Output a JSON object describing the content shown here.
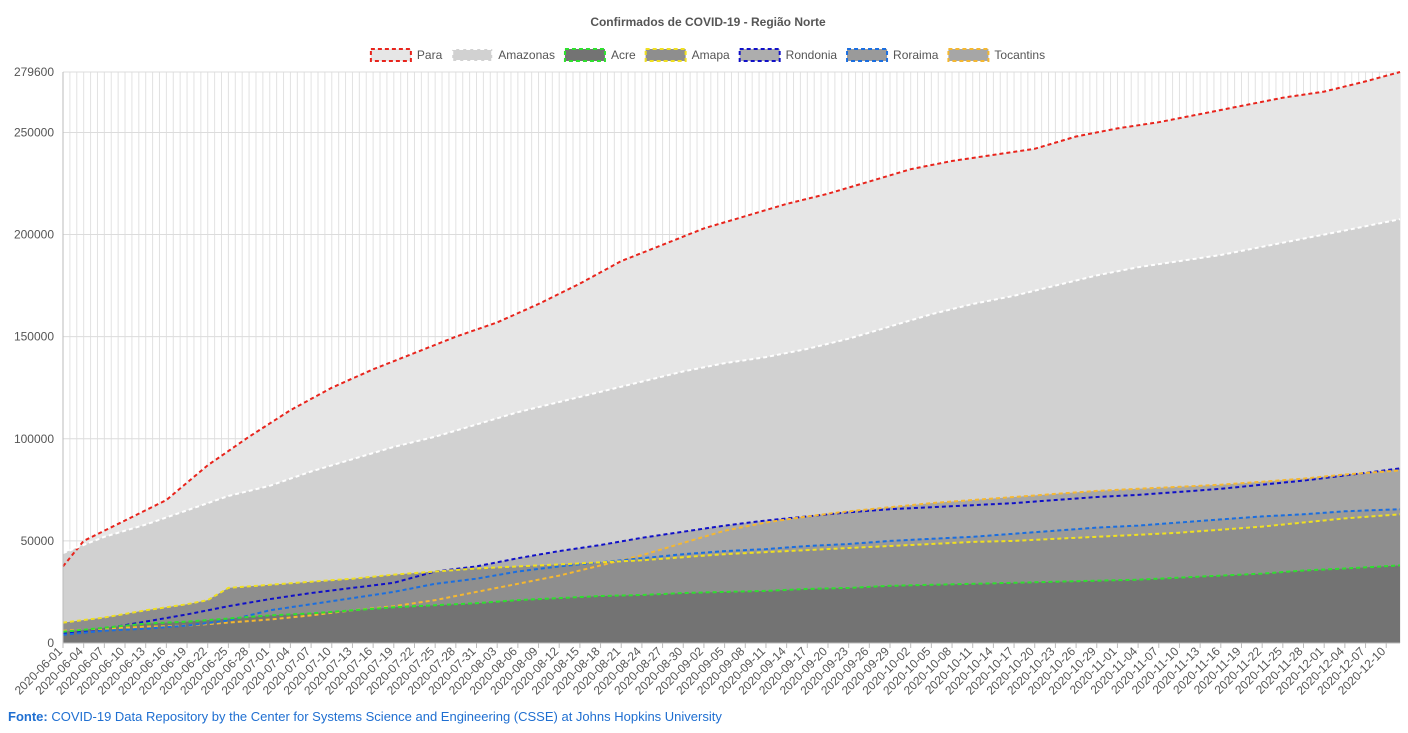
{
  "chart_data": {
    "type": "area",
    "title": "Confirmados de COVID-19 - Região Norte",
    "xlabel": "",
    "ylabel": "",
    "ylim": [
      0,
      279600
    ],
    "y_ticks": [
      0,
      50000,
      100000,
      150000,
      200000,
      250000,
      279600
    ],
    "grid": true,
    "stacked": false,
    "legend_position": "top-center",
    "date_start": "2020-06-01",
    "date_end": "2020-12-12",
    "x_tick_labels": [
      "2020-06-01",
      "2020-06-04",
      "2020-06-07",
      "2020-06-10",
      "2020-06-13",
      "2020-06-16",
      "2020-06-19",
      "2020-06-22",
      "2020-06-25",
      "2020-06-28",
      "2020-07-01",
      "2020-07-04",
      "2020-07-07",
      "2020-07-10",
      "2020-07-13",
      "2020-07-16",
      "2020-07-19",
      "2020-07-22",
      "2020-07-25",
      "2020-07-28",
      "2020-07-31",
      "2020-08-03",
      "2020-08-06",
      "2020-08-09",
      "2020-08-12",
      "2020-08-15",
      "2020-08-18",
      "2020-08-21",
      "2020-08-24",
      "2020-08-27",
      "2020-08-30",
      "2020-09-02",
      "2020-09-05",
      "2020-09-08",
      "2020-09-11",
      "2020-09-14",
      "2020-09-17",
      "2020-09-20",
      "2020-09-23",
      "2020-09-26",
      "2020-09-29",
      "2020-10-02",
      "2020-10-05",
      "2020-10-08",
      "2020-10-11",
      "2020-10-14",
      "2020-10-17",
      "2020-10-20",
      "2020-10-23",
      "2020-10-26",
      "2020-10-29",
      "2020-11-01",
      "2020-11-04",
      "2020-11-07",
      "2020-11-10",
      "2020-11-13",
      "2020-11-16",
      "2020-11-19",
      "2020-11-22",
      "2020-11-25",
      "2020-11-28",
      "2020-12-01",
      "2020-12-04",
      "2020-12-07",
      "2020-12-10"
    ],
    "series": [
      {
        "name": "Para",
        "line_color": "#e8241c",
        "fill_color": "#e6e6e6",
        "points": [
          [
            "2020-06-01",
            37500
          ],
          [
            "2020-06-04",
            50000
          ],
          [
            "2020-06-10",
            60000
          ],
          [
            "2020-06-16",
            70000
          ],
          [
            "2020-06-22",
            87000
          ],
          [
            "2020-06-28",
            101000
          ],
          [
            "2020-07-04",
            114000
          ],
          [
            "2020-07-10",
            125000
          ],
          [
            "2020-07-16",
            134000
          ],
          [
            "2020-07-22",
            142000
          ],
          [
            "2020-07-28",
            150000
          ],
          [
            "2020-08-03",
            157000
          ],
          [
            "2020-08-09",
            166000
          ],
          [
            "2020-08-15",
            176000
          ],
          [
            "2020-08-21",
            187000
          ],
          [
            "2020-08-27",
            195000
          ],
          [
            "2020-09-02",
            203000
          ],
          [
            "2020-09-08",
            209000
          ],
          [
            "2020-09-14",
            215000
          ],
          [
            "2020-09-20",
            220000
          ],
          [
            "2020-09-26",
            226000
          ],
          [
            "2020-10-02",
            232000
          ],
          [
            "2020-10-08",
            236000
          ],
          [
            "2020-10-14",
            239000
          ],
          [
            "2020-10-20",
            242000
          ],
          [
            "2020-10-26",
            248000
          ],
          [
            "2020-11-01",
            252000
          ],
          [
            "2020-11-07",
            255000
          ],
          [
            "2020-11-13",
            259000
          ],
          [
            "2020-11-19",
            263000
          ],
          [
            "2020-11-25",
            267000
          ],
          [
            "2020-12-01",
            270000
          ],
          [
            "2020-12-07",
            275000
          ],
          [
            "2020-12-12",
            279600
          ]
        ]
      },
      {
        "name": "Amazonas",
        "line_color": "#ffffff",
        "fill_color": "#d1d1d1",
        "points": [
          [
            "2020-06-01",
            44000
          ],
          [
            "2020-06-07",
            52000
          ],
          [
            "2020-06-13",
            58000
          ],
          [
            "2020-06-19",
            65000
          ],
          [
            "2020-06-25",
            72000
          ],
          [
            "2020-07-01",
            77000
          ],
          [
            "2020-07-07",
            84000
          ],
          [
            "2020-07-13",
            90000
          ],
          [
            "2020-07-19",
            96000
          ],
          [
            "2020-07-25",
            101000
          ],
          [
            "2020-07-31",
            107000
          ],
          [
            "2020-08-06",
            113000
          ],
          [
            "2020-08-12",
            118000
          ],
          [
            "2020-08-18",
            123000
          ],
          [
            "2020-08-24",
            128000
          ],
          [
            "2020-08-30",
            133000
          ],
          [
            "2020-09-05",
            137000
          ],
          [
            "2020-09-11",
            140000
          ],
          [
            "2020-09-17",
            144000
          ],
          [
            "2020-09-23",
            149000
          ],
          [
            "2020-09-29",
            155000
          ],
          [
            "2020-10-05",
            161000
          ],
          [
            "2020-10-11",
            166000
          ],
          [
            "2020-10-17",
            170000
          ],
          [
            "2020-10-23",
            175000
          ],
          [
            "2020-10-29",
            180000
          ],
          [
            "2020-11-04",
            184000
          ],
          [
            "2020-11-10",
            187000
          ],
          [
            "2020-11-16",
            190000
          ],
          [
            "2020-11-22",
            194000
          ],
          [
            "2020-11-28",
            198000
          ],
          [
            "2020-12-04",
            202000
          ],
          [
            "2020-12-12",
            207500
          ]
        ]
      },
      {
        "name": "Rondonia",
        "line_color": "#1010c8",
        "fill_color": "#adadad",
        "points": [
          [
            "2020-06-01",
            4500
          ],
          [
            "2020-06-07",
            7000
          ],
          [
            "2020-06-13",
            10500
          ],
          [
            "2020-06-19",
            14000
          ],
          [
            "2020-06-25",
            18000
          ],
          [
            "2020-07-01",
            21500
          ],
          [
            "2020-07-07",
            24500
          ],
          [
            "2020-07-13",
            27000
          ],
          [
            "2020-07-19",
            29500
          ],
          [
            "2020-07-25",
            35000
          ],
          [
            "2020-07-31",
            37500
          ],
          [
            "2020-08-06",
            41500
          ],
          [
            "2020-08-12",
            45000
          ],
          [
            "2020-08-18",
            48000
          ],
          [
            "2020-08-24",
            51500
          ],
          [
            "2020-08-30",
            54500
          ],
          [
            "2020-09-05",
            57500
          ],
          [
            "2020-09-11",
            60000
          ],
          [
            "2020-09-17",
            62000
          ],
          [
            "2020-09-23",
            64000
          ],
          [
            "2020-09-29",
            65500
          ],
          [
            "2020-10-05",
            66500
          ],
          [
            "2020-10-11",
            67500
          ],
          [
            "2020-10-17",
            68500
          ],
          [
            "2020-10-23",
            70000
          ],
          [
            "2020-10-29",
            71500
          ],
          [
            "2020-11-04",
            72500
          ],
          [
            "2020-11-10",
            74000
          ],
          [
            "2020-11-16",
            75500
          ],
          [
            "2020-11-22",
            77500
          ],
          [
            "2020-11-28",
            79500
          ],
          [
            "2020-12-04",
            82000
          ],
          [
            "2020-12-12",
            85500
          ]
        ]
      },
      {
        "name": "Tocantins",
        "line_color": "#f5b830",
        "fill_color": "#a6a6a6",
        "points": [
          [
            "2020-06-01",
            6000
          ],
          [
            "2020-06-07",
            7000
          ],
          [
            "2020-06-13",
            8000
          ],
          [
            "2020-06-19",
            8500
          ],
          [
            "2020-06-25",
            10000
          ],
          [
            "2020-07-01",
            11500
          ],
          [
            "2020-07-07",
            13500
          ],
          [
            "2020-07-13",
            16000
          ],
          [
            "2020-07-19",
            18000
          ],
          [
            "2020-07-25",
            21000
          ],
          [
            "2020-07-31",
            25000
          ],
          [
            "2020-08-06",
            29000
          ],
          [
            "2020-08-12",
            33000
          ],
          [
            "2020-08-18",
            38000
          ],
          [
            "2020-08-24",
            43000
          ],
          [
            "2020-08-30",
            49000
          ],
          [
            "2020-09-05",
            55000
          ],
          [
            "2020-09-11",
            59000
          ],
          [
            "2020-09-17",
            62000
          ],
          [
            "2020-09-23",
            64500
          ],
          [
            "2020-09-29",
            66500
          ],
          [
            "2020-10-05",
            68500
          ],
          [
            "2020-10-11",
            70000
          ],
          [
            "2020-10-17",
            71500
          ],
          [
            "2020-10-23",
            73000
          ],
          [
            "2020-10-29",
            74500
          ],
          [
            "2020-11-04",
            75500
          ],
          [
            "2020-11-10",
            76500
          ],
          [
            "2020-11-16",
            77500
          ],
          [
            "2020-11-22",
            79000
          ],
          [
            "2020-11-28",
            80500
          ],
          [
            "2020-12-04",
            82500
          ],
          [
            "2020-12-12",
            84500
          ]
        ]
      },
      {
        "name": "Roraima",
        "line_color": "#1a6ee0",
        "fill_color": "#9a9a9a",
        "points": [
          [
            "2020-06-01",
            4000
          ],
          [
            "2020-06-07",
            6000
          ],
          [
            "2020-06-13",
            7000
          ],
          [
            "2020-06-19",
            8500
          ],
          [
            "2020-06-25",
            11000
          ],
          [
            "2020-07-01",
            16000
          ],
          [
            "2020-07-07",
            19000
          ],
          [
            "2020-07-13",
            22000
          ],
          [
            "2020-07-19",
            25000
          ],
          [
            "2020-07-25",
            29000
          ],
          [
            "2020-07-31",
            31500
          ],
          [
            "2020-08-06",
            35000
          ],
          [
            "2020-08-12",
            37500
          ],
          [
            "2020-08-18",
            39500
          ],
          [
            "2020-08-24",
            41500
          ],
          [
            "2020-08-30",
            43500
          ],
          [
            "2020-09-05",
            45000
          ],
          [
            "2020-09-11",
            46000
          ],
          [
            "2020-09-17",
            47500
          ],
          [
            "2020-09-23",
            48500
          ],
          [
            "2020-09-29",
            50000
          ],
          [
            "2020-10-05",
            51000
          ],
          [
            "2020-10-11",
            52000
          ],
          [
            "2020-10-17",
            53500
          ],
          [
            "2020-10-23",
            55000
          ],
          [
            "2020-10-29",
            56500
          ],
          [
            "2020-11-04",
            57500
          ],
          [
            "2020-11-10",
            59000
          ],
          [
            "2020-11-16",
            60500
          ],
          [
            "2020-11-22",
            62000
          ],
          [
            "2020-11-28",
            63000
          ],
          [
            "2020-12-04",
            64500
          ],
          [
            "2020-12-12",
            65500
          ]
        ]
      },
      {
        "name": "Amapa",
        "line_color": "#f0e020",
        "fill_color": "#8e8e8e",
        "points": [
          [
            "2020-06-01",
            10000
          ],
          [
            "2020-06-07",
            12500
          ],
          [
            "2020-06-13",
            16000
          ],
          [
            "2020-06-19",
            19000
          ],
          [
            "2020-06-22",
            21000
          ],
          [
            "2020-06-25",
            27000
          ],
          [
            "2020-07-01",
            28500
          ],
          [
            "2020-07-07",
            30000
          ],
          [
            "2020-07-13",
            31500
          ],
          [
            "2020-07-19",
            33500
          ],
          [
            "2020-07-25",
            35000
          ],
          [
            "2020-07-31",
            36500
          ],
          [
            "2020-08-06",
            37500
          ],
          [
            "2020-08-12",
            38500
          ],
          [
            "2020-08-18",
            39500
          ],
          [
            "2020-08-24",
            40500
          ],
          [
            "2020-08-30",
            42000
          ],
          [
            "2020-09-05",
            43500
          ],
          [
            "2020-09-11",
            44500
          ],
          [
            "2020-09-17",
            45500
          ],
          [
            "2020-09-23",
            46500
          ],
          [
            "2020-09-29",
            47500
          ],
          [
            "2020-10-05",
            48500
          ],
          [
            "2020-10-11",
            49500
          ],
          [
            "2020-10-17",
            50000
          ],
          [
            "2020-10-23",
            51000
          ],
          [
            "2020-10-29",
            52000
          ],
          [
            "2020-11-04",
            53000
          ],
          [
            "2020-11-10",
            54000
          ],
          [
            "2020-11-16",
            55500
          ],
          [
            "2020-11-22",
            57000
          ],
          [
            "2020-11-28",
            59000
          ],
          [
            "2020-12-04",
            61000
          ],
          [
            "2020-12-12",
            63000
          ]
        ]
      },
      {
        "name": "Acre",
        "line_color": "#2ee02e",
        "fill_color": "#737373",
        "points": [
          [
            "2020-06-01",
            5500
          ],
          [
            "2020-06-07",
            7500
          ],
          [
            "2020-06-13",
            9500
          ],
          [
            "2020-06-19",
            10500
          ],
          [
            "2020-06-25",
            12000
          ],
          [
            "2020-07-01",
            13500
          ],
          [
            "2020-07-07",
            14500
          ],
          [
            "2020-07-13",
            16000
          ],
          [
            "2020-07-19",
            17500
          ],
          [
            "2020-07-25",
            18500
          ],
          [
            "2020-07-31",
            19500
          ],
          [
            "2020-08-06",
            21000
          ],
          [
            "2020-08-12",
            22000
          ],
          [
            "2020-08-18",
            23000
          ],
          [
            "2020-08-24",
            23500
          ],
          [
            "2020-08-30",
            24500
          ],
          [
            "2020-09-05",
            25000
          ],
          [
            "2020-09-11",
            25500
          ],
          [
            "2020-09-17",
            26500
          ],
          [
            "2020-09-23",
            27000
          ],
          [
            "2020-09-29",
            28000
          ],
          [
            "2020-10-05",
            28500
          ],
          [
            "2020-10-11",
            29000
          ],
          [
            "2020-10-17",
            29500
          ],
          [
            "2020-10-23",
            30000
          ],
          [
            "2020-10-29",
            30500
          ],
          [
            "2020-11-04",
            31000
          ],
          [
            "2020-11-10",
            32000
          ],
          [
            "2020-11-16",
            33000
          ],
          [
            "2020-11-22",
            34000
          ],
          [
            "2020-11-28",
            35500
          ],
          [
            "2020-12-04",
            36500
          ],
          [
            "2020-12-12",
            38000
          ]
        ]
      }
    ],
    "legend_order": [
      "Para",
      "Amazonas",
      "Acre",
      "Amapa",
      "Rondonia",
      "Roraima",
      "Tocantins"
    ]
  },
  "footer": {
    "label": "Fonte:",
    "source_text": "COVID-19 Data Repository by the Center for Systems Science and Engineering (CSSE) at Johns Hopkins University"
  }
}
